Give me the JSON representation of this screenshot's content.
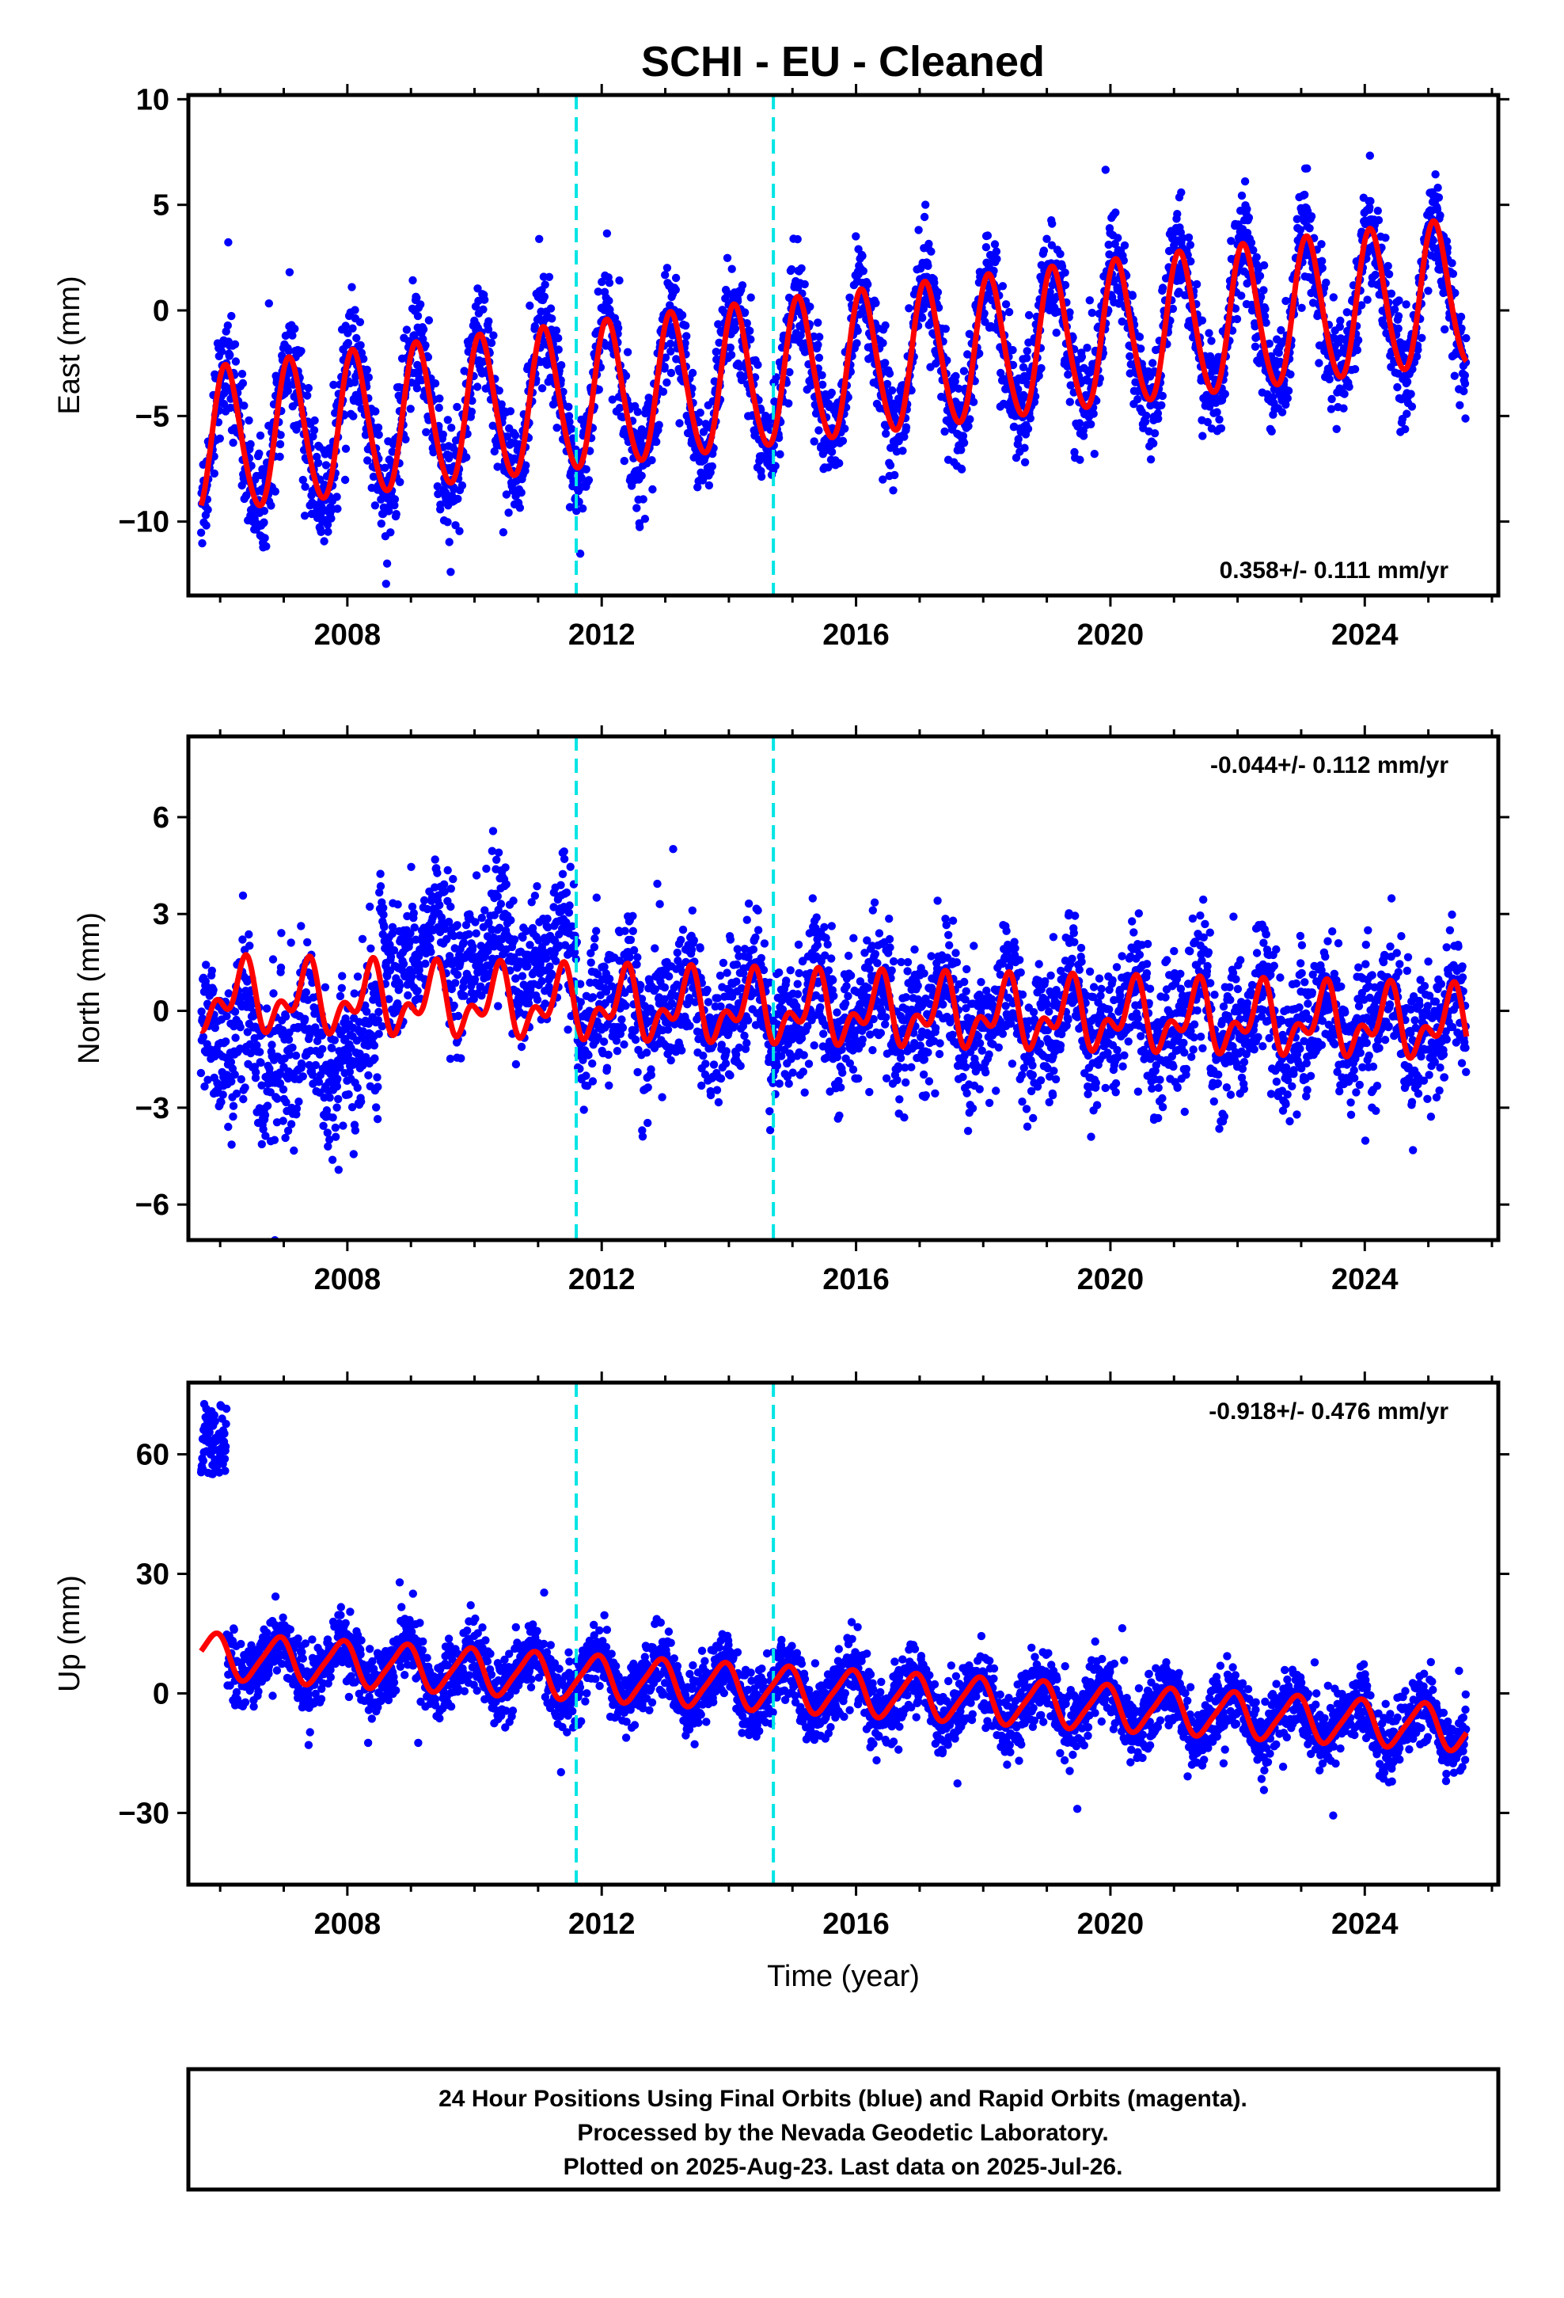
{
  "chart_data": [
    {
      "type": "scatter",
      "panel": "east",
      "title": "SCHI  - EU - Cleaned",
      "ylabel": "East (mm)",
      "xlim": [
        2005.5,
        2026.1
      ],
      "ylim": [
        -13.5,
        10.2
      ],
      "yticks": [
        10,
        5,
        0,
        -5,
        -10
      ],
      "xticks": [
        2008,
        2012,
        2016,
        2020,
        2024
      ],
      "rate_label": "0.358+/- 0.111 mm/yr",
      "rate_position": "bottom-right",
      "model": {
        "offset": -2.8,
        "trend": 0.358,
        "annual_amp": 3.4,
        "annual_phase": 0.15,
        "semi_amp": 0.3,
        "semi_phase": 0.6,
        "trend_ref": 2015.5,
        "curve_extra_slope": 0.0
      },
      "series": [
        {
          "values_summary": "daily GPS positions, final orbits",
          "color": "#0000ff",
          "x_range": [
            2005.7,
            2025.6
          ]
        },
        {
          "values_summary": "model fit",
          "color": "#ff0000"
        }
      ],
      "grid": false
    },
    {
      "type": "scatter",
      "panel": "north",
      "ylabel": "North (mm)",
      "xlim": [
        2005.5,
        2026.1
      ],
      "ylim": [
        -7.1,
        8.5
      ],
      "yticks": [
        6,
        3,
        0,
        -3,
        -6
      ],
      "xticks": [
        2008,
        2012,
        2016,
        2020,
        2024
      ],
      "rate_label": "-0.044+/- 0.112 mm/yr",
      "rate_position": "top-right",
      "model": {
        "offset": 0.0,
        "trend": -0.044,
        "annual_amp": 0.8,
        "annual_phase": 0.9,
        "semi_amp": 0.6,
        "semi_phase": 0.2,
        "trend_ref": 2015.5
      },
      "series": [
        {
          "values_summary": "daily GPS positions, final orbits",
          "color": "#0000ff",
          "x_range": [
            2005.7,
            2025.6
          ]
        },
        {
          "values_summary": "model fit",
          "color": "#ff0000"
        }
      ],
      "grid": false
    },
    {
      "type": "scatter",
      "panel": "up",
      "ylabel": "Up (mm)",
      "xlabel": "Time (year)",
      "xlim": [
        2005.5,
        2026.1
      ],
      "ylim": [
        -48,
        78
      ],
      "yticks": [
        60,
        30,
        0,
        -30
      ],
      "xticks": [
        2008,
        2012,
        2016,
        2020,
        2024
      ],
      "rate_label": "-0.918+/- 0.476 mm/yr",
      "rate_position": "top-right",
      "model": {
        "offset": 0.5,
        "trend": -0.918,
        "annual_amp": 5.5,
        "annual_phase": 0.35,
        "semi_amp": 1.0,
        "semi_phase": 0.1,
        "trend_ref": 2015.5
      },
      "series": [
        {
          "values_summary": "daily GPS positions, final orbits",
          "color": "#0000ff",
          "x_range": [
            2005.7,
            2025.6
          ]
        },
        {
          "values_summary": "model fit",
          "color": "#ff0000"
        }
      ],
      "grid": false
    }
  ],
  "events": [
    2011.6,
    2014.7
  ],
  "colors": {
    "points": "#0000ff",
    "model": "#ff0000",
    "events": "#00e5e5"
  },
  "footer": {
    "line1": "24 Hour Positions Using Final Orbits (blue) and Rapid Orbits (magenta).",
    "line2": "Processed by the Nevada Geodetic Laboratory.",
    "line3": "Plotted on 2025-Aug-23. Last data on 2025-Jul-26."
  }
}
